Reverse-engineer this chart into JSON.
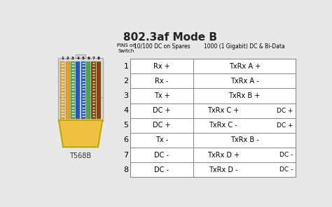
{
  "title": "802.3af Mode B",
  "title_fontsize": 11,
  "background_color": "#e8e8e8",
  "header_col1": "PINS on\nSwitch",
  "header_col2": "10/100 DC on Spares",
  "header_col3": "1000 (1 Gigabit) DC & Bi-Data",
  "rows": [
    {
      "pin": "1",
      "col2": "Rx +",
      "col3_left": "TxRx A +",
      "col3_right": ""
    },
    {
      "pin": "2",
      "col2": "Rx -",
      "col3_left": "TxRx A -",
      "col3_right": ""
    },
    {
      "pin": "3",
      "col2": "Tx +",
      "col3_left": "TxRx B +",
      "col3_right": ""
    },
    {
      "pin": "4",
      "col2": "DC +",
      "col3_left": "TxRx C +",
      "col3_right": "DC +"
    },
    {
      "pin": "5",
      "col2": "DC +",
      "col3_left": "TxRx C -",
      "col3_right": "DC +"
    },
    {
      "pin": "6",
      "col2": "Tx -",
      "col3_left": "TxRx B -",
      "col3_right": ""
    },
    {
      "pin": "7",
      "col2": "DC -",
      "col3_left": "TxRx D +",
      "col3_right": "DC -"
    },
    {
      "pin": "8",
      "col2": "DC -",
      "col3_left": "TxRx D -",
      "col3_right": "DC -"
    }
  ],
  "connector_label": "T568B",
  "wire_colors": [
    [
      "#e8a020",
      "#ffffff"
    ],
    [
      "#e8a020",
      null
    ],
    [
      "#44aa44",
      "#ffffff"
    ],
    [
      "#2255cc",
      null
    ],
    [
      "#2255cc",
      "#ffffff"
    ],
    [
      "#44aa44",
      null
    ],
    [
      "#884400",
      "#ffffff"
    ],
    [
      "#884400",
      null
    ]
  ],
  "connector_body_color": "#f0c040",
  "connector_outline_color": "#bbaa00",
  "connector_shell_color": "#dddddd",
  "connector_shell_outline": "#aaaaaa"
}
